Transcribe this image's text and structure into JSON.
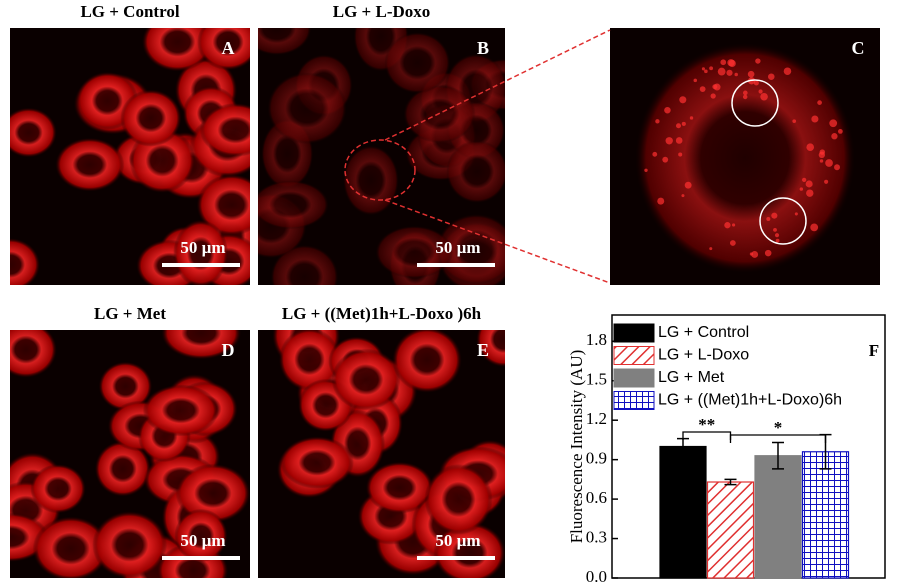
{
  "panels": [
    {
      "title": "LG + Control",
      "letter": "A",
      "scale": "50 µm"
    },
    {
      "title": "LG + L-Doxo",
      "letter": "B",
      "scale": "50 µm"
    },
    {
      "letter": "C"
    },
    {
      "title": "LG + Met",
      "letter": "D",
      "scale": "50 µm"
    },
    {
      "title": "LG + ((Met)1h+L-Doxo )6h",
      "letter": "E",
      "scale": "50 µm"
    }
  ],
  "chart_data": {
    "type": "bar",
    "panel_letter": "F",
    "ylabel": "Fluorescence Intensity (AU)",
    "categories": [
      null
    ],
    "series": [
      {
        "name": "LG + Control",
        "color": "#000000",
        "pattern": "solid",
        "values": [
          1.0
        ],
        "errors": [
          0.06
        ]
      },
      {
        "name": "LG + L-Doxo",
        "color": "#e03030",
        "pattern": "hatch",
        "values": [
          0.73
        ],
        "errors": [
          0.02
        ]
      },
      {
        "name": "LG + Met",
        "color": "#808080",
        "pattern": "solid",
        "values": [
          0.93
        ],
        "errors": [
          0.1
        ]
      },
      {
        "name": "LG + ((Met)1h+L-Doxo)6h",
        "color": "#1010c0",
        "pattern": "grid",
        "values": [
          0.96
        ],
        "errors": [
          0.13
        ]
      }
    ],
    "ylim": [
      0,
      2.0
    ],
    "yticks": [
      {
        "value": 0,
        "label": "0.0"
      },
      0.3,
      0.6,
      0.9,
      1.2,
      1.5,
      1.8
    ],
    "annotations": [
      "**",
      "*"
    ]
  }
}
